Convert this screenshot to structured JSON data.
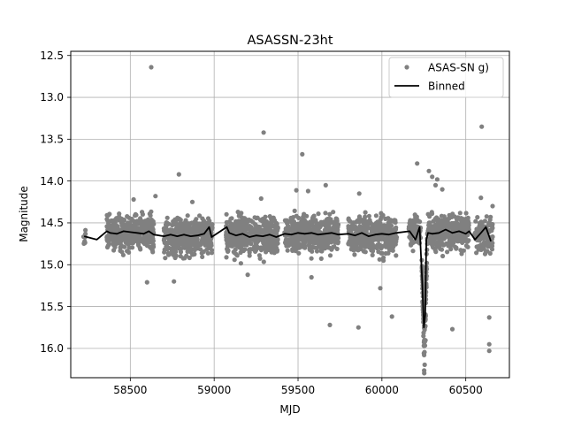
{
  "chart_data": {
    "type": "scatter",
    "title": "ASASSN-23ht",
    "xlabel": "MJD",
    "ylabel": "Magnitude",
    "xlim": [
      58145,
      60760
    ],
    "ylim": [
      16.35,
      12.45
    ],
    "y_inverted": true,
    "x_ticks": [
      58500,
      59000,
      59500,
      60000,
      60500
    ],
    "x_tick_labels": [
      "58500",
      "59000",
      "59500",
      "60000",
      "60500"
    ],
    "y_ticks": [
      12.5,
      13.0,
      13.5,
      14.0,
      14.5,
      15.0,
      15.5,
      16.0
    ],
    "y_tick_labels": [
      "12.5",
      "13.0",
      "13.5",
      "14.0",
      "14.5",
      "15.0",
      "15.5",
      "16.0"
    ],
    "grid": true,
    "legend": {
      "location": "top-right",
      "entries": [
        "ASAS-SN g)",
        "Binned"
      ]
    },
    "series": [
      {
        "name": "ASAS-SN g)",
        "kind": "scatter",
        "color": "#808080",
        "seasons": [
          {
            "x_range": [
              58220,
              58235
            ],
            "median": 14.68,
            "spread": 0.1,
            "count": 10
          },
          {
            "x_range": [
              58360,
              58640
            ],
            "median": 14.62,
            "spread": 0.18,
            "count": 420
          },
          {
            "x_range": [
              58700,
              58990
            ],
            "median": 14.66,
            "spread": 0.19,
            "count": 430
          },
          {
            "x_range": [
              59070,
              59380
            ],
            "median": 14.66,
            "spread": 0.2,
            "count": 470
          },
          {
            "x_range": [
              59420,
              59740
            ],
            "median": 14.63,
            "spread": 0.19,
            "count": 470
          },
          {
            "x_range": [
              59800,
              60090
            ],
            "median": 14.65,
            "spread": 0.19,
            "count": 420
          },
          {
            "x_range": [
              60160,
              60235
            ],
            "median": 14.62,
            "spread": 0.18,
            "count": 90
          },
          {
            "x_range": [
              60275,
              60520
            ],
            "median": 14.6,
            "spread": 0.18,
            "count": 360
          },
          {
            "x_range": [
              60550,
              60660
            ],
            "median": 14.66,
            "spread": 0.18,
            "count": 130
          }
        ],
        "dip": {
          "x_range": [
            60236,
            60272
          ],
          "min_magnitude": 16.12,
          "center": 60253,
          "count": 90
        },
        "outliers": [
          [
            58625,
            12.64
          ],
          [
            58520,
            14.22
          ],
          [
            58650,
            14.18
          ],
          [
            58600,
            15.21
          ],
          [
            58790,
            13.92
          ],
          [
            58760,
            15.2
          ],
          [
            58870,
            14.25
          ],
          [
            59295,
            13.42
          ],
          [
            59280,
            14.21
          ],
          [
            59200,
            15.12
          ],
          [
            59525,
            13.68
          ],
          [
            59490,
            14.11
          ],
          [
            59560,
            14.12
          ],
          [
            59580,
            15.15
          ],
          [
            59665,
            14.05
          ],
          [
            59690,
            15.72
          ],
          [
            59865,
            14.15
          ],
          [
            59860,
            15.75
          ],
          [
            59990,
            15.28
          ],
          [
            60060,
            15.62
          ],
          [
            60210,
            13.79
          ],
          [
            60280,
            13.88
          ],
          [
            60300,
            13.95
          ],
          [
            60320,
            14.05
          ],
          [
            60330,
            13.98
          ],
          [
            60360,
            14.1
          ],
          [
            60420,
            15.77
          ],
          [
            60595,
            13.35
          ],
          [
            60590,
            14.2
          ],
          [
            60640,
            15.63
          ],
          [
            60640,
            15.95
          ],
          [
            60640,
            16.03
          ],
          [
            60660,
            14.3
          ]
        ]
      },
      {
        "name": "Binned",
        "kind": "line",
        "color": "#000000",
        "x": [
          58225,
          58300,
          58360,
          58380,
          58420,
          58460,
          58500,
          58540,
          58580,
          58610,
          58640,
          58700,
          58740,
          58780,
          58820,
          58860,
          58900,
          58940,
          58970,
          58985,
          59075,
          59090,
          59130,
          59170,
          59210,
          59250,
          59290,
          59330,
          59370,
          59420,
          59460,
          59500,
          59540,
          59580,
          59620,
          59660,
          59700,
          59740,
          59800,
          59840,
          59880,
          59920,
          59960,
          60000,
          60040,
          60085,
          60165,
          60200,
          60225,
          60240,
          60250,
          60258,
          60265,
          60275,
          60300,
          60340,
          60380,
          60420,
          60460,
          60500,
          60520,
          60555,
          60590,
          60620,
          60650
        ],
        "y": [
          14.66,
          14.7,
          14.6,
          14.62,
          14.63,
          14.6,
          14.61,
          14.62,
          14.63,
          14.6,
          14.64,
          14.66,
          14.64,
          14.66,
          14.64,
          14.66,
          14.65,
          14.63,
          14.55,
          14.67,
          14.55,
          14.62,
          14.65,
          14.63,
          14.67,
          14.65,
          14.66,
          14.64,
          14.67,
          14.63,
          14.64,
          14.62,
          14.63,
          14.62,
          14.64,
          14.63,
          14.62,
          14.64,
          14.63,
          14.65,
          14.62,
          14.66,
          14.64,
          14.63,
          14.64,
          14.62,
          14.6,
          14.7,
          14.55,
          15.2,
          15.75,
          15.6,
          14.7,
          14.62,
          14.63,
          14.62,
          14.58,
          14.62,
          14.6,
          14.63,
          14.6,
          14.7,
          14.62,
          14.55,
          14.72
        ]
      }
    ]
  }
}
